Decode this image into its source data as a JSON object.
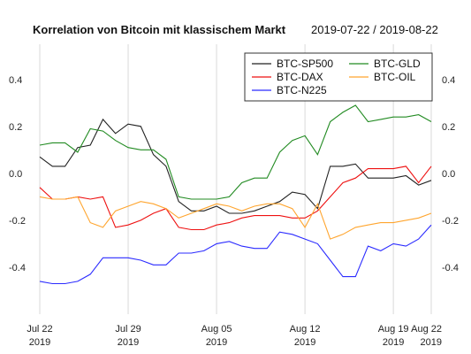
{
  "chart_data": {
    "type": "line",
    "title": "Korrelation von Bitcoin mit klassischem Markt",
    "subtitle": "2019-07-22 / 2019-08-22",
    "ylim": [
      -0.6,
      0.55
    ],
    "y_ticks": [
      "0.4",
      "0.2",
      "0.0",
      "-0.2",
      "-0.4"
    ],
    "y_tick_values": [
      0.4,
      0.2,
      0.0,
      -0.2,
      -0.4
    ],
    "x_ticks": [
      {
        "value": "2019-07-22",
        "line1": "Jul 22",
        "line2": "2019"
      },
      {
        "value": "2019-07-29",
        "line1": "Jul 29",
        "line2": "2019"
      },
      {
        "value": "2019-08-05",
        "line1": "Aug 05",
        "line2": "2019"
      },
      {
        "value": "2019-08-12",
        "line1": "Aug 12",
        "line2": "2019"
      },
      {
        "value": "2019-08-19",
        "line1": "Aug 19",
        "line2": "2019"
      },
      {
        "value": "2019-08-22",
        "line1": "Aug 22",
        "line2": "2019"
      }
    ],
    "grid": true,
    "legend_position": "top-right",
    "x": [
      "2019-07-22",
      "2019-07-23",
      "2019-07-24",
      "2019-07-25",
      "2019-07-26",
      "2019-07-27",
      "2019-07-28",
      "2019-07-29",
      "2019-07-30",
      "2019-07-31",
      "2019-08-01",
      "2019-08-02",
      "2019-08-03",
      "2019-08-04",
      "2019-08-05",
      "2019-08-06",
      "2019-08-07",
      "2019-08-08",
      "2019-08-09",
      "2019-08-10",
      "2019-08-11",
      "2019-08-12",
      "2019-08-13",
      "2019-08-14",
      "2019-08-15",
      "2019-08-16",
      "2019-08-17",
      "2019-08-18",
      "2019-08-19",
      "2019-08-20",
      "2019-08-21",
      "2019-08-22"
    ],
    "series": [
      {
        "name": "BTC-SP500",
        "color": "#222222",
        "values": [
          0.07,
          0.03,
          0.03,
          0.11,
          0.12,
          0.23,
          0.17,
          0.21,
          0.2,
          0.08,
          0.03,
          -0.12,
          -0.16,
          -0.16,
          -0.14,
          -0.17,
          -0.17,
          -0.16,
          -0.14,
          -0.12,
          -0.08,
          -0.09,
          -0.15,
          0.03,
          0.03,
          0.04,
          -0.02,
          -0.02,
          -0.02,
          -0.01,
          -0.05,
          -0.03
        ]
      },
      {
        "name": "BTC-GLD",
        "color": "#228b22",
        "values": [
          0.12,
          0.13,
          0.13,
          0.09,
          0.19,
          0.18,
          0.14,
          0.11,
          0.1,
          0.1,
          0.06,
          -0.1,
          -0.11,
          -0.11,
          -0.11,
          -0.1,
          -0.04,
          -0.02,
          -0.02,
          0.09,
          0.14,
          0.16,
          0.08,
          0.22,
          0.26,
          0.29,
          0.22,
          0.23,
          0.24,
          0.24,
          0.25,
          0.22
        ]
      },
      {
        "name": "BTC-DAX",
        "color": "#ee1111",
        "values": [
          -0.06,
          -0.11,
          -0.11,
          -0.1,
          -0.11,
          -0.1,
          -0.23,
          -0.22,
          -0.2,
          -0.17,
          -0.15,
          -0.23,
          -0.24,
          -0.24,
          -0.22,
          -0.21,
          -0.19,
          -0.18,
          -0.18,
          -0.18,
          -0.19,
          -0.19,
          -0.16,
          -0.1,
          -0.04,
          -0.02,
          0.02,
          0.02,
          0.02,
          0.03,
          -0.04,
          0.03
        ]
      },
      {
        "name": "BTC-OIL",
        "color": "#ffa52e",
        "values": [
          -0.1,
          -0.11,
          -0.11,
          -0.1,
          -0.21,
          -0.23,
          -0.16,
          -0.14,
          -0.12,
          -0.13,
          -0.15,
          -0.19,
          -0.17,
          -0.15,
          -0.13,
          -0.14,
          -0.16,
          -0.14,
          -0.13,
          -0.13,
          -0.15,
          -0.23,
          -0.13,
          -0.28,
          -0.26,
          -0.23,
          -0.22,
          -0.21,
          -0.21,
          -0.2,
          -0.19,
          -0.17
        ]
      },
      {
        "name": "BTC-N225",
        "color": "#2b2bff",
        "values": [
          -0.46,
          -0.47,
          -0.47,
          -0.46,
          -0.43,
          -0.36,
          -0.36,
          -0.36,
          -0.37,
          -0.39,
          -0.39,
          -0.34,
          -0.34,
          -0.33,
          -0.3,
          -0.29,
          -0.31,
          -0.32,
          -0.32,
          -0.25,
          -0.26,
          -0.28,
          -0.3,
          -0.37,
          -0.44,
          -0.44,
          -0.31,
          -0.33,
          -0.3,
          -0.31,
          -0.28,
          -0.22
        ]
      }
    ]
  }
}
